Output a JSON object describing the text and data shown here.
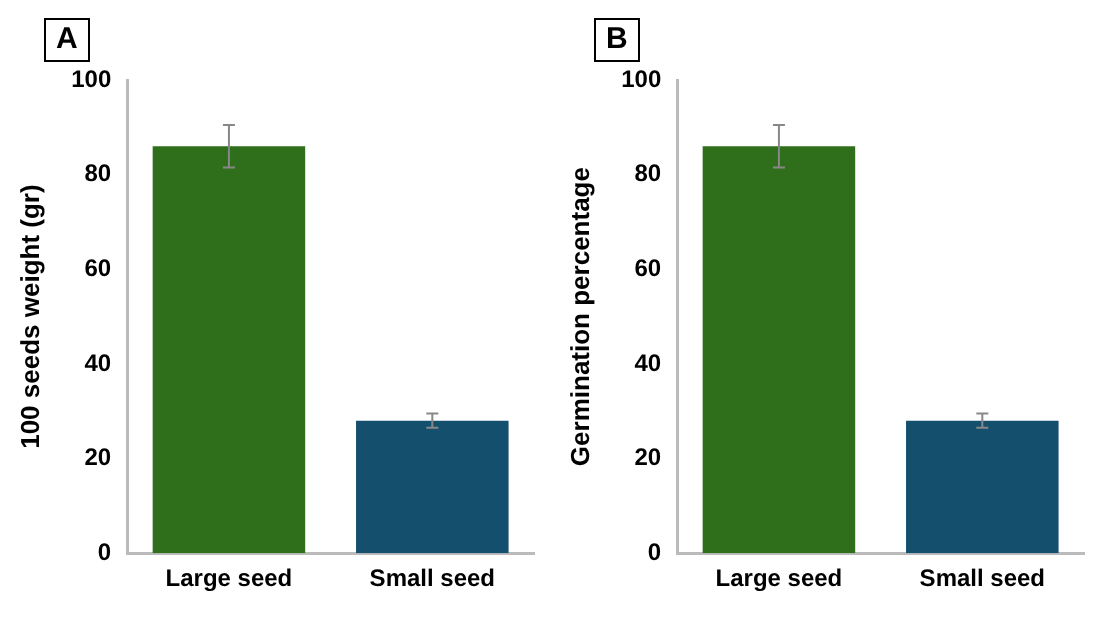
{
  "chart_data": [
    {
      "type": "bar",
      "title": "A",
      "ylabel": "100 seeds weight (gr)",
      "categories": [
        "Large seed",
        "Small seed"
      ],
      "values": [
        86,
        28
      ],
      "errors": [
        4.5,
        1.5
      ],
      "colors": [
        "#2f6e1a",
        "#14506e"
      ],
      "ylim": [
        0,
        100
      ],
      "yticks": [
        0,
        20,
        40,
        60,
        80,
        100
      ],
      "grid": false
    },
    {
      "type": "bar",
      "title": "B",
      "ylabel": "Germination percentage",
      "categories": [
        "Large seed",
        "Small seed"
      ],
      "values": [
        86,
        28
      ],
      "errors": [
        4.5,
        1.5
      ],
      "colors": [
        "#2f6e1a",
        "#14506e"
      ],
      "ylim": [
        0,
        100
      ],
      "yticks": [
        0,
        20,
        40,
        60,
        80,
        100
      ],
      "grid": false
    }
  ]
}
